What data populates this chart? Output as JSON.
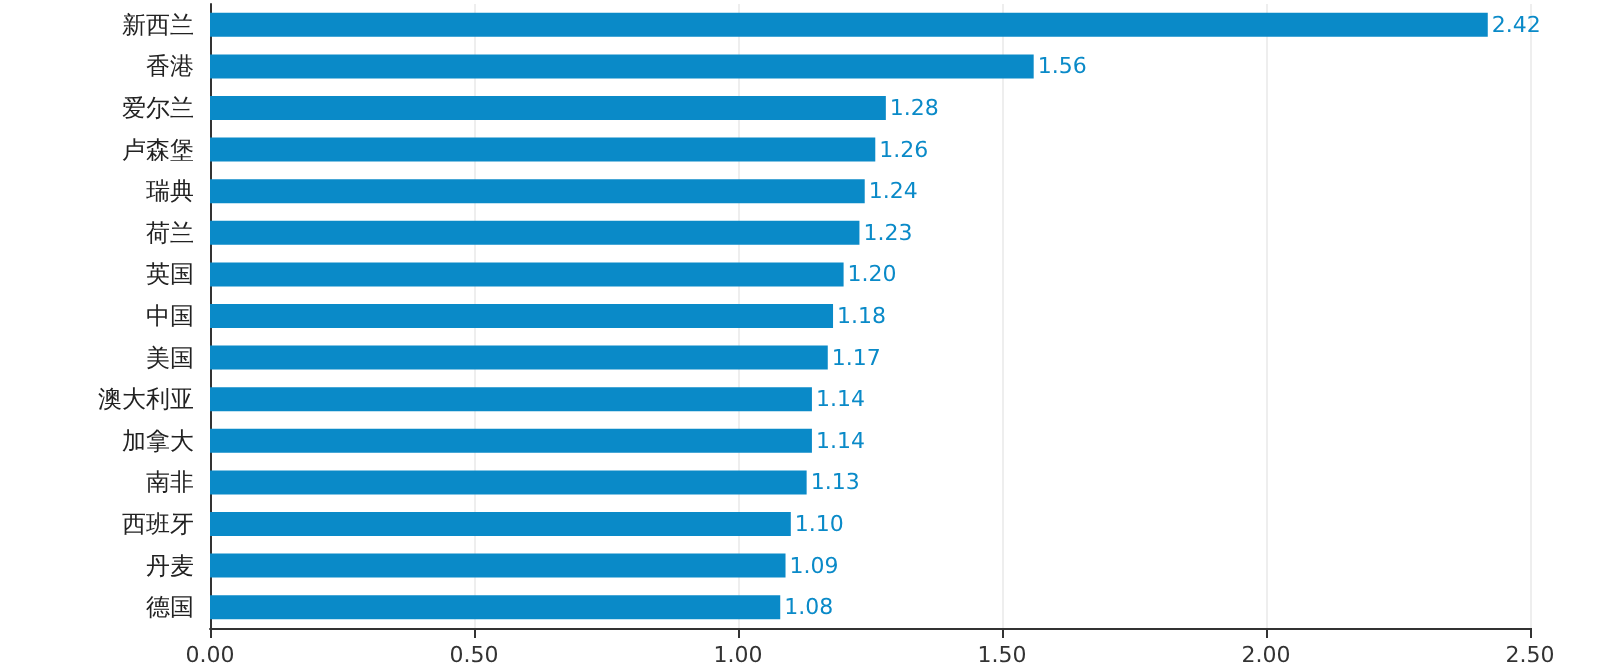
{
  "chart_data": {
    "type": "bar",
    "orientation": "horizontal",
    "categories": [
      "新西兰",
      "香港",
      "爱尔兰",
      "卢森堡",
      "瑞典",
      "荷兰",
      "英国",
      "中国",
      "美国",
      "澳大利亚",
      "加拿大",
      "南非",
      "西班牙",
      "丹麦",
      "德国"
    ],
    "values": [
      2.42,
      1.56,
      1.28,
      1.26,
      1.24,
      1.23,
      1.2,
      1.18,
      1.17,
      1.14,
      1.14,
      1.13,
      1.1,
      1.09,
      1.08
    ],
    "value_labels": [
      "2.42",
      "1.56",
      "1.28",
      "1.26",
      "1.24",
      "1.23",
      "1.20",
      "1.18",
      "1.17",
      "1.14",
      "1.14",
      "1.13",
      "1.10",
      "1.09",
      "1.08"
    ],
    "color": "#0a8ac8",
    "xlim": [
      0,
      2.5
    ],
    "xticks": [
      {
        "value": 0,
        "label": "0.00"
      },
      {
        "value": 0.5,
        "label": "0.50"
      },
      {
        "value": 1,
        "label": "1.00"
      },
      {
        "value": 1.5,
        "label": "1.50"
      },
      {
        "value": 2,
        "label": "2.00"
      },
      {
        "value": 2.5,
        "label": "2.50"
      }
    ],
    "grid": "x"
  }
}
